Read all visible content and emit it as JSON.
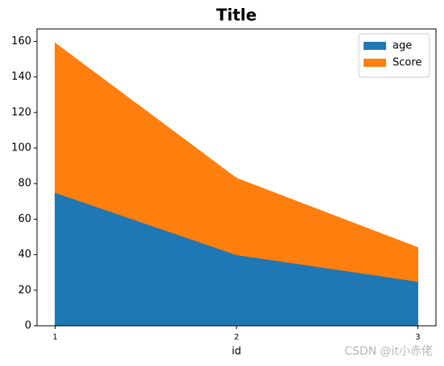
{
  "chart_data": {
    "type": "stacked_area",
    "title": "Title",
    "x_label": "id",
    "x": [
      1,
      2,
      3
    ],
    "xlim": [
      0.9,
      3.1
    ],
    "xticks": [
      1,
      2,
      3
    ],
    "ylim": [
      0,
      167
    ],
    "yticks": [
      0,
      20,
      40,
      60,
      80,
      100,
      120,
      140,
      160
    ],
    "series": [
      {
        "name": "age",
        "color": "#1f77b4",
        "values": [
          75,
          40,
          25
        ]
      },
      {
        "name": "Score",
        "color": "#ff7f0e",
        "values": [
          84,
          43,
          19
        ]
      }
    ],
    "legend": "upper right",
    "watermark": "CSDN @it小赤佬"
  }
}
